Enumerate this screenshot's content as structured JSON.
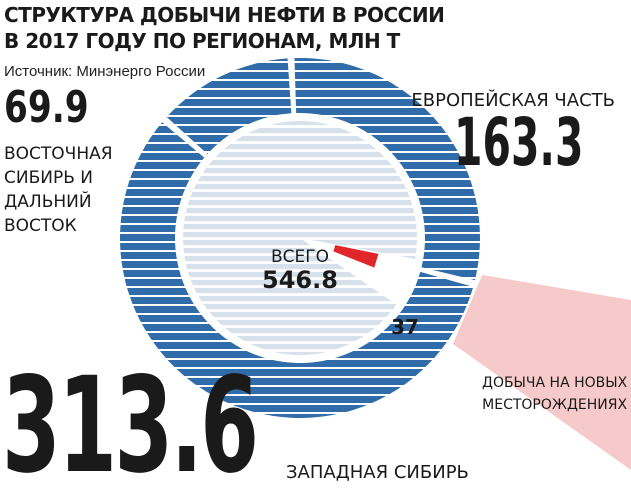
{
  "title_lines": [
    "СТРУКТУРА ДОБЫЧИ НЕФТИ В РОССИИ",
    "В 2017 ГОДУ ПО РЕГИОНАМ, МЛН Т"
  ],
  "source": "Источник: Минэнерго России",
  "colors": {
    "ring_blue": "#2f6ca9",
    "inner_blue": "#dbe5ef",
    "highlight_red": "#e0262b",
    "callout_pink": "#f6caca"
  },
  "chart_data": {
    "type": "pie",
    "title": "СТРУКТУРА ДОБЫЧИ НЕФТИ В РОССИИ В 2017 ГОДУ ПО РЕГИОНАМ, МЛН Т",
    "unit": "МЛН Т",
    "total_label": "ВСЕГО",
    "total": "546.8",
    "slices": [
      {
        "label": "ЕВРОПЕЙСКАЯ ЧАСТЬ",
        "value": 163.3,
        "value_text": "163.3"
      },
      {
        "label": "ЗАПАДНАЯ СИБИРЬ",
        "value": 313.6,
        "value_text": "313.6"
      },
      {
        "label": "ВОСТОЧНАЯ СИБИРЬ И ДАЛЬНИЙ ВОСТОК",
        "value": 69.9,
        "value_text": "69.9"
      }
    ],
    "inner_highlight": {
      "label": "ДОБЫЧА НА НОВЫХ МЕСТОРОЖДЕНИЯХ",
      "value": 37,
      "value_text": "37"
    }
  },
  "labels": {
    "east_lines": [
      "ВОСТОЧНАЯ",
      "СИБИРЬ И",
      "ДАЛЬНИЙ",
      "ВОСТОК"
    ],
    "europe": "ЕВРОПЕЙСКАЯ ЧАСТЬ",
    "west": "ЗАПАДНАЯ СИБИРЬ",
    "new_fields_lines": [
      "ДОБЫЧА НА НОВЫХ",
      "МЕСТОРОЖДЕНИЯХ"
    ]
  }
}
